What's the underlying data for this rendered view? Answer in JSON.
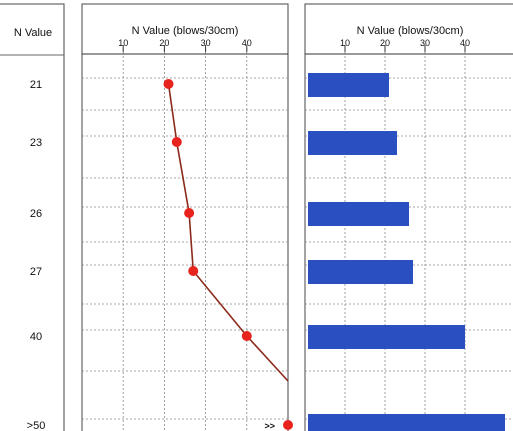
{
  "chart_data": [
    {
      "type": "table",
      "header": "N Value",
      "rows": [
        "21",
        "23",
        "26",
        "27",
        "40",
        ">50"
      ]
    },
    {
      "type": "line",
      "title": "N Value (blows/30cm)",
      "x_ticks": [
        10,
        20,
        30,
        40
      ],
      "xlim": [
        0,
        50
      ],
      "grid": true,
      "points": [
        {
          "x": 21,
          "label": "21"
        },
        {
          "x": 23,
          "label": "23"
        },
        {
          "x": 26,
          "label": "26"
        },
        {
          "x": 27,
          "label": "27"
        },
        {
          "x": 40,
          "label": "40"
        },
        {
          "x": 50,
          "label": ">50"
        }
      ],
      "overflow_marker": ">>",
      "line_color": "#8b2a1a",
      "marker_color": "#e8221c"
    },
    {
      "type": "bar",
      "orientation": "horizontal",
      "title": "N Value (blows/30cm)",
      "x_ticks": [
        10,
        20,
        30,
        40
      ],
      "xlim": [
        0,
        50
      ],
      "grid": true,
      "categories": [
        "21",
        "23",
        "26",
        "27",
        "40",
        ">50"
      ],
      "values": [
        21,
        23,
        26,
        27,
        40,
        50
      ],
      "bar_color": "#2a4fc0"
    }
  ]
}
